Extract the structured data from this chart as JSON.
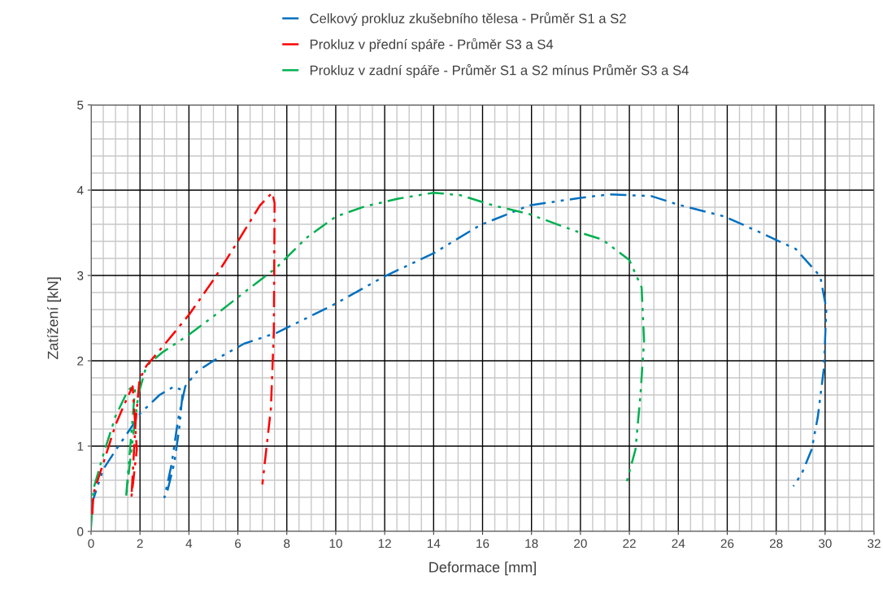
{
  "chart_data": {
    "type": "line",
    "xlabel": "Deformace [mm]",
    "ylabel": "Zatížení [kN]",
    "xlim": [
      0,
      32
    ],
    "xticks": [
      0,
      2,
      4,
      6,
      8,
      10,
      12,
      14,
      16,
      18,
      20,
      22,
      24,
      26,
      28,
      30,
      32
    ],
    "ylim": [
      0,
      5
    ],
    "yticks": [
      0,
      1,
      2,
      3,
      4,
      5
    ],
    "grid": true,
    "legend": "top",
    "marker": "none",
    "series": [
      {
        "name": "Celkový prokluz zkušebního tělesa - Průměr S1 a S2",
        "color": "#0070c0",
        "line_style": "dashed",
        "x": [
          0,
          0.5,
          1.0,
          1.6,
          2.0,
          2.8,
          3.4,
          3.75,
          3.6,
          3.4,
          3.1,
          3.0,
          3.3,
          3.55,
          3.85,
          4.35,
          5.0,
          6.25,
          7.6,
          9.8,
          12.0,
          14.0,
          15.9,
          17.9,
          20.0,
          21.2,
          22.9,
          24.0,
          25.9,
          27.3,
          28.8,
          29.8,
          30.05,
          29.95,
          29.7,
          29.45,
          29.05,
          28.7
        ],
        "values": [
          0.3,
          0.73,
          0.95,
          1.2,
          1.38,
          1.6,
          1.7,
          1.65,
          1.2,
          0.8,
          0.45,
          0.4,
          0.8,
          1.3,
          1.7,
          1.88,
          2.0,
          2.2,
          2.33,
          2.64,
          2.99,
          3.26,
          3.59,
          3.82,
          3.91,
          3.95,
          3.93,
          3.83,
          3.69,
          3.51,
          3.31,
          2.99,
          2.61,
          1.91,
          1.34,
          0.96,
          0.68,
          0.53
        ]
      },
      {
        "name": "Prokluz v přední spáře - Průměr S3 a S4",
        "color": "#ff0000",
        "line_style": "dashed",
        "x": [
          0.05,
          0.1,
          0.5,
          1.0,
          1.5,
          1.7,
          1.87,
          1.65,
          1.82,
          1.98,
          2.26,
          3.03,
          4.03,
          5.03,
          6.0,
          6.9,
          7.4,
          7.5,
          7.47,
          7.35,
          7.0
        ],
        "values": [
          0.2,
          0.45,
          0.8,
          1.25,
          1.58,
          1.7,
          0.96,
          0.4,
          1.28,
          1.78,
          1.94,
          2.2,
          2.55,
          2.96,
          3.4,
          3.82,
          3.97,
          3.85,
          2.35,
          1.44,
          0.55
        ]
      },
      {
        "name": "Prokluz v zadní spáře - Průměr S1 a S2 mínus Průměr S3 a S4",
        "color": "#00b050",
        "line_style": "dashed",
        "x": [
          0,
          0.1,
          0.5,
          1.0,
          1.5,
          1.7,
          1.8,
          1.43,
          1.65,
          1.93,
          2.26,
          2.92,
          3.92,
          5.14,
          6.25,
          7.57,
          8.8,
          10.0,
          11.2,
          12.55,
          14.0,
          15.1,
          16.45,
          17.9,
          19.9,
          20.9,
          22.0,
          22.5,
          22.6,
          22.45,
          22.25,
          21.9
        ],
        "values": [
          0.05,
          0.5,
          0.9,
          1.35,
          1.65,
          1.7,
          1.68,
          0.4,
          0.96,
          1.6,
          1.94,
          2.1,
          2.29,
          2.55,
          2.8,
          3.09,
          3.44,
          3.69,
          3.81,
          3.9,
          3.97,
          3.94,
          3.82,
          3.72,
          3.51,
          3.42,
          3.18,
          2.86,
          2.23,
          1.59,
          0.96,
          0.59
        ]
      }
    ]
  }
}
